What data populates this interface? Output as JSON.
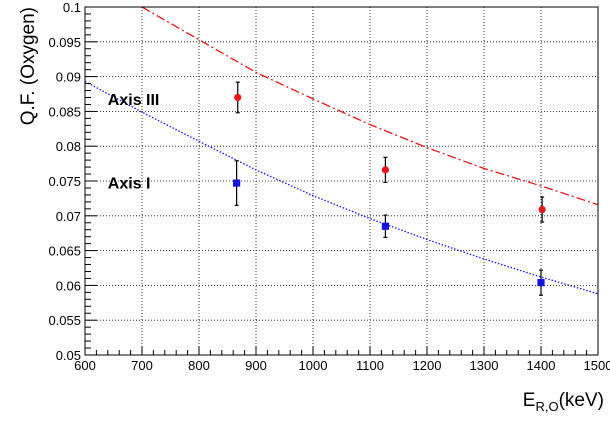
{
  "chart_data": {
    "type": "scatter",
    "title": "",
    "ylabel": "Q.F. (Oxygen)",
    "xlabel": {
      "base": "E",
      "subscript": "R,O",
      "suffix": "(keV)"
    },
    "xlim": [
      600,
      1500
    ],
    "ylim": [
      0.05,
      0.1
    ],
    "x_ticks": [
      600,
      700,
      800,
      900,
      1000,
      1100,
      1200,
      1300,
      1400,
      1500
    ],
    "x_tick_labels": [
      "600",
      "700",
      "800",
      "900",
      "1000",
      "1100",
      "1200",
      "1300",
      "1400",
      "1500"
    ],
    "y_ticks": [
      0.05,
      0.055,
      0.06,
      0.065,
      0.07,
      0.075,
      0.08,
      0.085,
      0.09,
      0.095,
      0.1
    ],
    "y_tick_labels": [
      "0.05",
      "0.055",
      "0.06",
      "0.065",
      "0.07",
      "0.075",
      "0.08",
      "0.085",
      "0.09",
      "0.095",
      "0.1"
    ],
    "grid": true,
    "series": [
      {
        "name": "Axis III",
        "color": "#e8141a",
        "marker": "circle",
        "points": [
          {
            "x": 868,
            "y": 0.087,
            "err": 0.0022
          },
          {
            "x": 1127,
            "y": 0.0766,
            "err": 0.0018
          },
          {
            "x": 1402,
            "y": 0.0709,
            "err": 0.0018
          }
        ],
        "fit": {
          "style": "dashed",
          "x": [
            700,
            800,
            900,
            1000,
            1100,
            1200,
            1300,
            1400,
            1500
          ],
          "y": [
            0.1,
            0.0953,
            0.0906,
            0.0868,
            0.0831,
            0.0798,
            0.0768,
            0.0743,
            0.0716
          ]
        },
        "label_anchor": {
          "x": 640,
          "y": 0.0868
        }
      },
      {
        "name": "Axis I",
        "color": "#1414e0",
        "marker": "square",
        "points": [
          {
            "x": 866,
            "y": 0.0747,
            "err": 0.0032
          },
          {
            "x": 1127,
            "y": 0.0685,
            "err": 0.0016
          },
          {
            "x": 1400,
            "y": 0.0604,
            "err": 0.0018
          }
        ],
        "fit": {
          "style": "dotted",
          "x": [
            600,
            700,
            800,
            900,
            1000,
            1100,
            1200,
            1300,
            1400,
            1500
          ],
          "y": [
            0.0893,
            0.0849,
            0.0807,
            0.0766,
            0.0729,
            0.0696,
            0.0666,
            0.0638,
            0.0612,
            0.0588
          ]
        },
        "label_anchor": {
          "x": 640,
          "y": 0.0748
        }
      }
    ]
  }
}
